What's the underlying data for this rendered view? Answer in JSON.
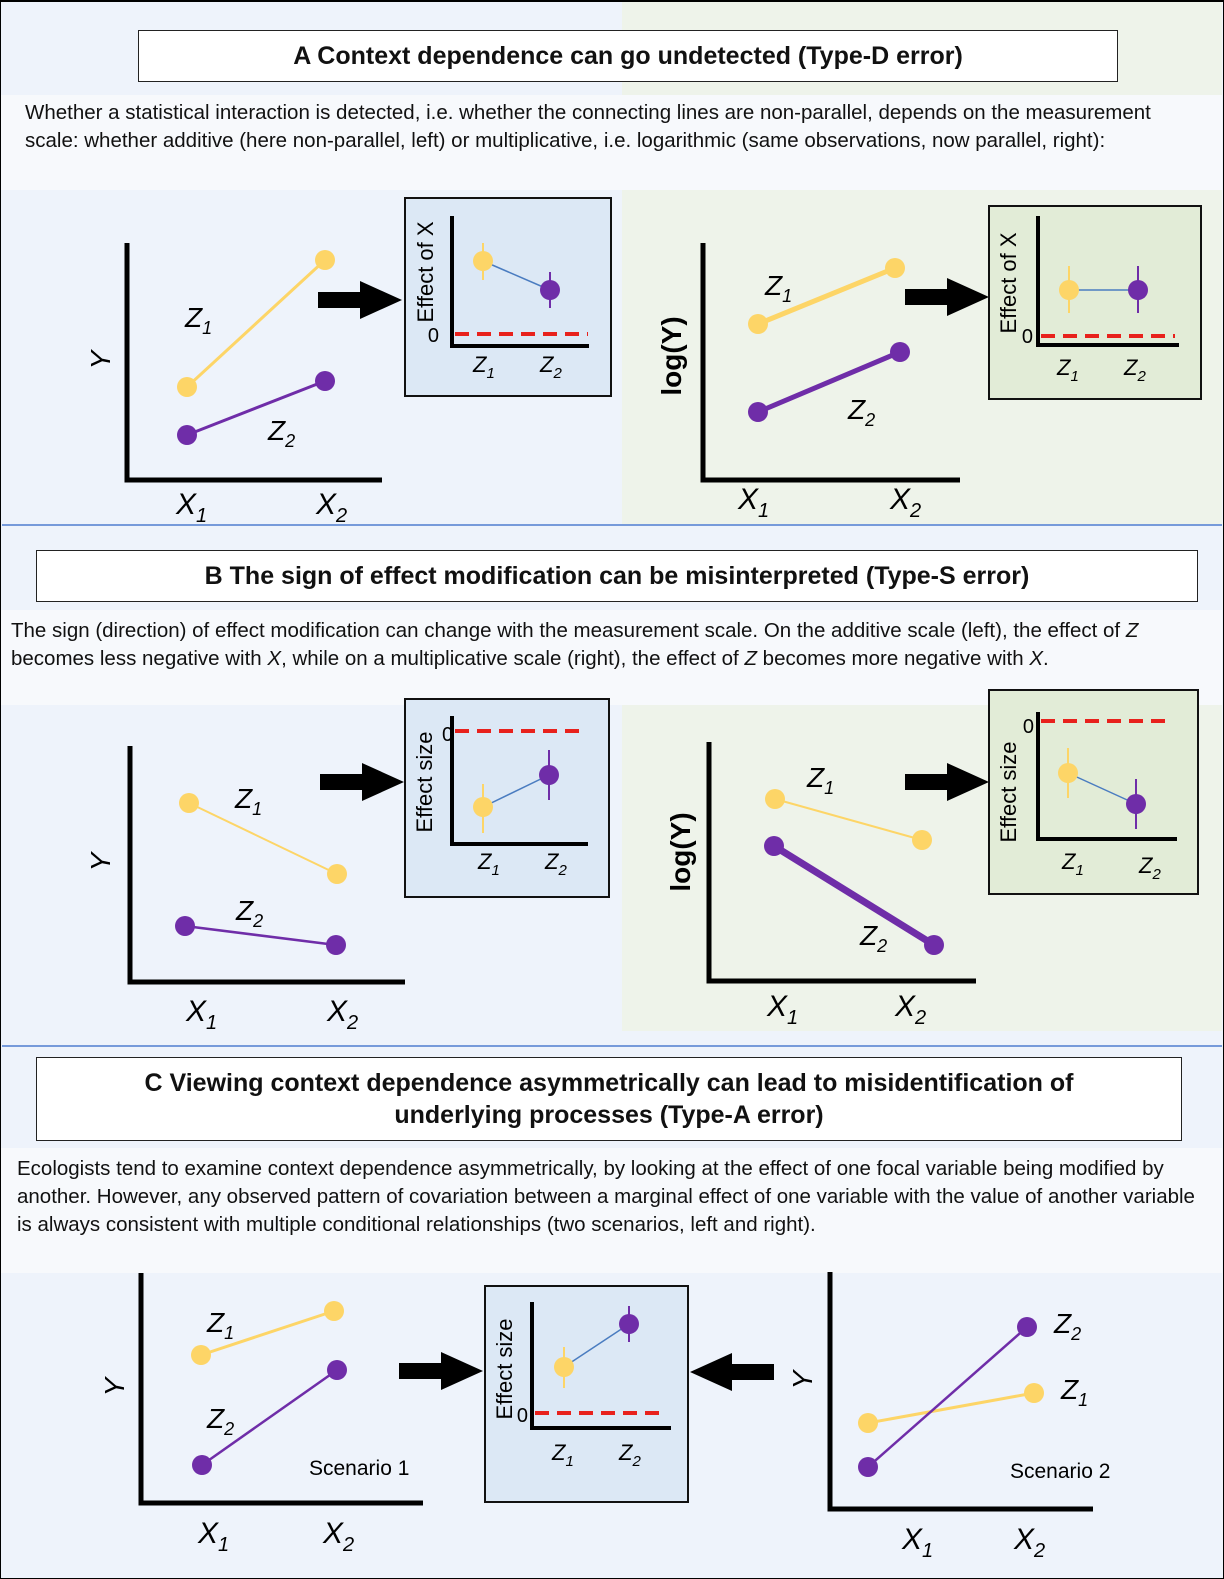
{
  "colors": {
    "z1": "#fdd567",
    "z2": "#6f2da8",
    "zero_line": "#e8211c",
    "arrow": "#000000",
    "inset_blue_bg": "#dce8f5",
    "inset_green_bg": "#e2ecd7",
    "panel_blue_bg": "#eef3fb",
    "panel_green_bg": "#eef3ea",
    "connector": "#4a7cc0",
    "divider": "#4f7cd0"
  },
  "sectionA": {
    "title": "A Context dependence can go undetected (Type-D error)",
    "text": "Whether a statistical interaction is detected, i.e. whether the connecting lines are non-parallel, depends on the measurement scale: whether additive (here non-parallel, left) or multiplicative, i.e. logarithmic (same observations, now parallel, right):",
    "left_ylabel": "Y",
    "right_ylabel": "log(Y)",
    "inset_ylabel": "Effect of X",
    "zero": "0"
  },
  "sectionB": {
    "title": "B The sign of effect modification can be misinterpreted (Type-S error)",
    "text_1": "The sign (direction) of effect modification can change with the measurement scale. On the additive scale (left), the effect of ",
    "z": "Z",
    "text_2": " becomes less negative with ",
    "x": "X",
    "text_3": ", while on a multiplicative scale (right), the effect of ",
    "text_4": " becomes more negative with ",
    "text_5": ".",
    "left_ylabel": "Y",
    "right_ylabel": "log(Y)",
    "inset_ylabel": "Effect size",
    "zero": "0"
  },
  "sectionC": {
    "title_line1": "C Viewing context dependence asymmetrically can lead to misidentification of",
    "title_line2": "underlying processes (Type-A error)",
    "text": "Ecologists tend to examine context dependence asymmetrically, by looking at the effect of one focal variable being modified by another. However, any observed pattern of covariation between a marginal effect of one variable with the value of another variable is always consistent with multiple conditional relationships (two scenarios, left and right).",
    "left_ylabel": "Y",
    "right_ylabel": "Y",
    "inset_ylabel": "Effect size",
    "zero": "0",
    "scenario1": "Scenario 1",
    "scenario2": "Scenario 2"
  },
  "labels": {
    "x1": "X",
    "x2": "X",
    "sub1": "1",
    "sub2": "2",
    "z": "Z"
  }
}
